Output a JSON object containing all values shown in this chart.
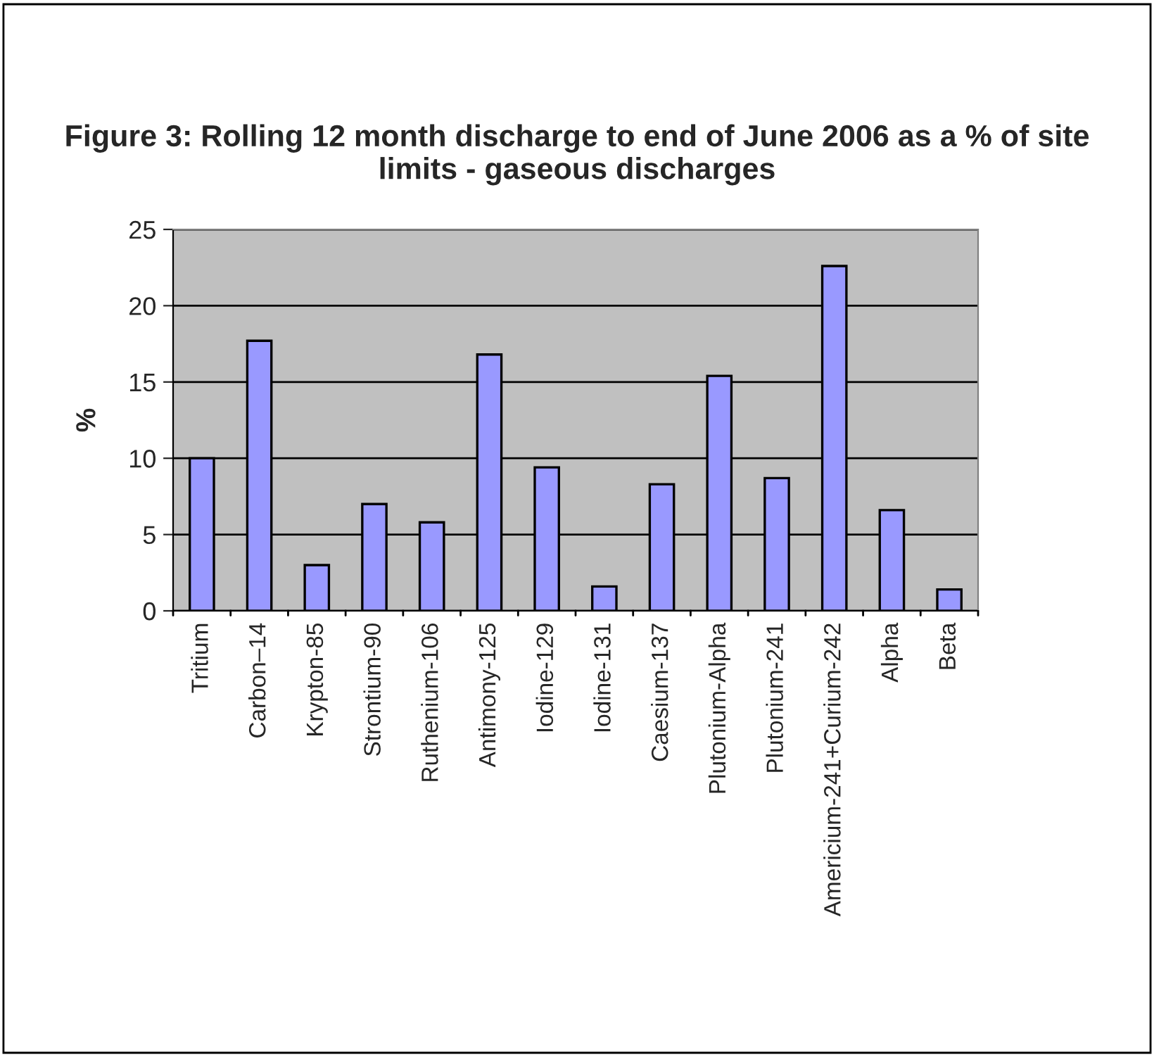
{
  "chart_data": {
    "type": "bar",
    "title": "Figure 3: Rolling 12 month discharge to end of June 2006 as a % of site limits - gaseous discharges",
    "ylabel": "%",
    "categories": [
      "Tritium",
      "Carbon–14",
      "Krypton-85",
      "Strontium-90",
      "Ruthenium-106",
      "Antimony-125",
      "Iodine-129",
      "Iodine-131",
      "Caesium-137",
      "Plutonium-Alpha",
      "Plutonium-241",
      "Americium-241+Curium-242",
      "Alpha",
      "Beta"
    ],
    "values": [
      10.0,
      17.7,
      3.0,
      7.0,
      5.8,
      16.8,
      9.4,
      1.6,
      8.3,
      15.4,
      8.7,
      22.6,
      6.6,
      1.4
    ],
    "color": "#9999ff",
    "ylim": [
      0,
      25
    ],
    "yticks": [
      0,
      5,
      10,
      15,
      20,
      25
    ],
    "grid": "y",
    "legend": false
  }
}
